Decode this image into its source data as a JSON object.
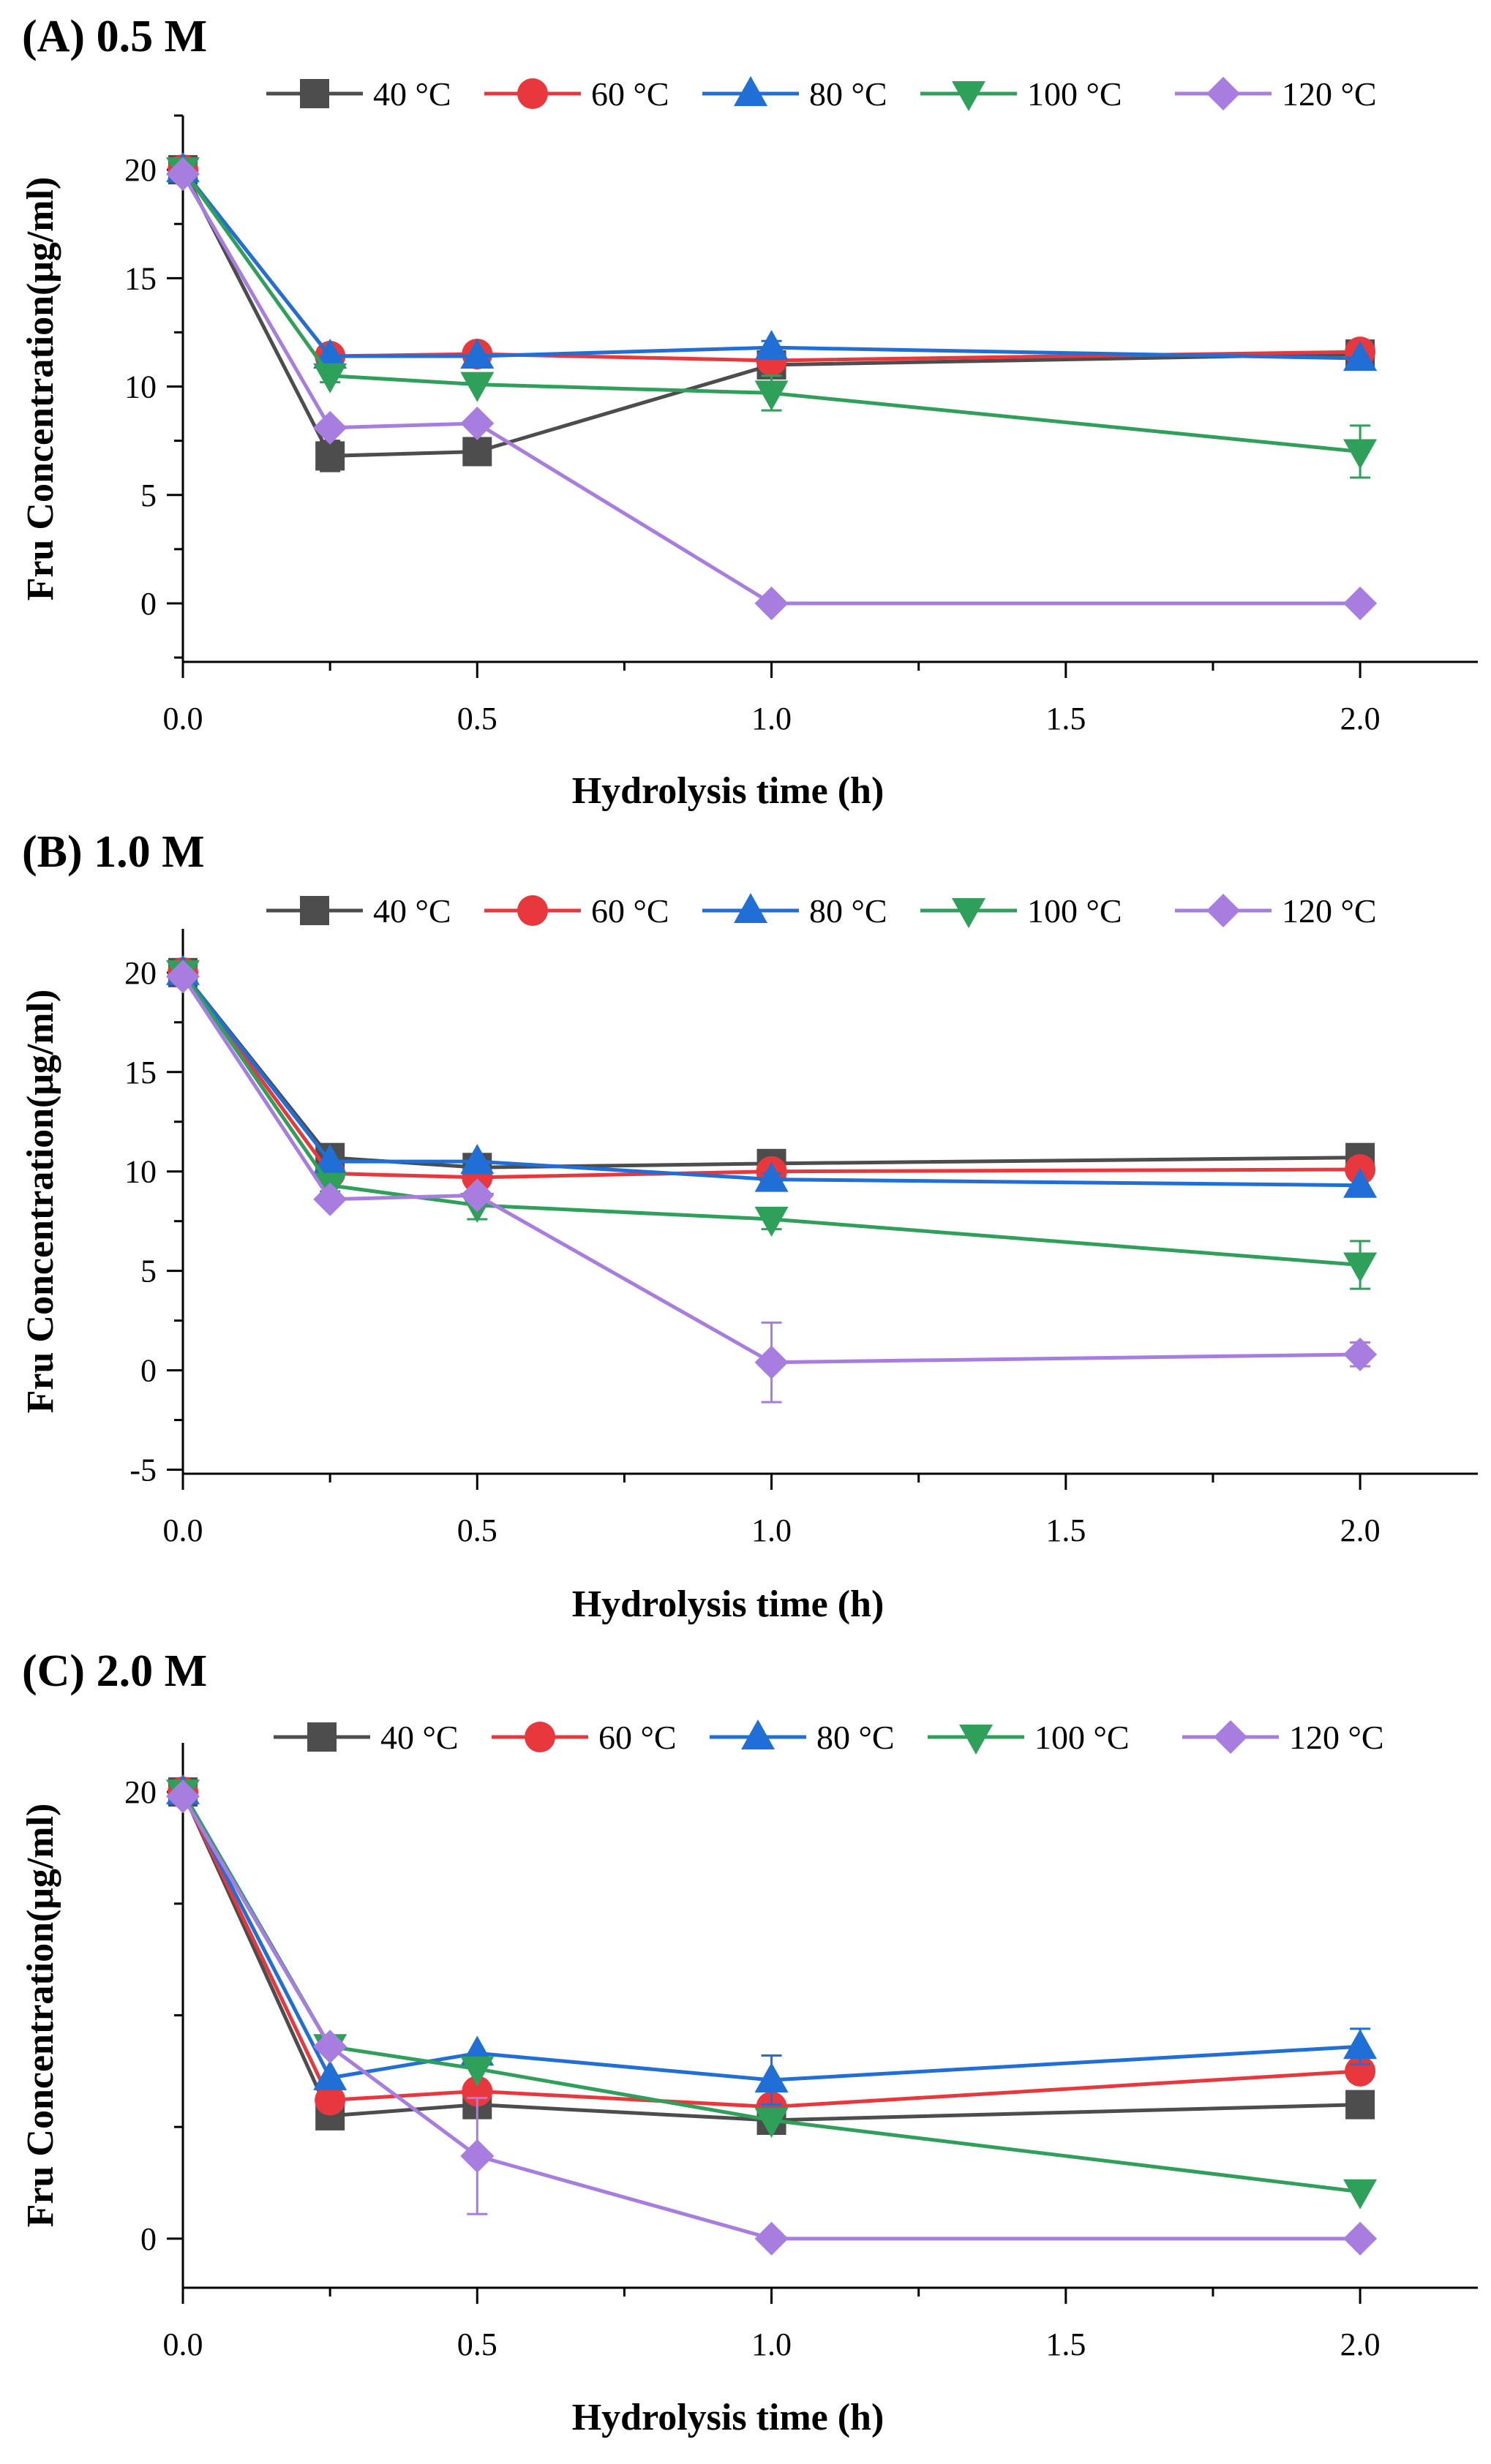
{
  "figure": {
    "xlabel": "Hydrolysis time (h)",
    "ylabel": "Fru Concentration(μg/ml)",
    "x_ticks": [
      "0.0",
      "0.5",
      "1.0",
      "1.5",
      "2.0"
    ],
    "legend": [
      {
        "name": "40 °C",
        "color": "#4d4d4d",
        "marker": "square"
      },
      {
        "name": "60 °C",
        "color": "#e8383d",
        "marker": "circle"
      },
      {
        "name": "80 °C",
        "color": "#1f6fd6",
        "marker": "triangle-up"
      },
      {
        "name": "100 °C",
        "color": "#2ea05a",
        "marker": "triangle-down"
      },
      {
        "name": "120 °C",
        "color": "#a77de0",
        "marker": "diamond"
      }
    ]
  },
  "chart_data": [
    {
      "type": "line",
      "title": "(A) 0.5 M",
      "xlabel": "Hydrolysis time (h)",
      "ylabel": "Fru Concentration(μg/ml)",
      "x": [
        0,
        0.25,
        0.5,
        1.0,
        2.0
      ],
      "xlim": [
        0,
        2.2
      ],
      "ylim": [
        -2.7,
        22.5
      ],
      "y_ticks": [
        0,
        5,
        10,
        15,
        20
      ],
      "y_tick_labels": [
        "0",
        "5",
        "10",
        "15",
        "20"
      ],
      "series": [
        {
          "name": "40 °C",
          "values": [
            20,
            6.8,
            7.0,
            11.0,
            11.5
          ],
          "errors": [
            0.3,
            0.7,
            0.2,
            0.2,
            0.2
          ]
        },
        {
          "name": "60 °C",
          "values": [
            20,
            11.4,
            11.5,
            11.2,
            11.6
          ],
          "errors": [
            0.2,
            0.2,
            0.2,
            0.3,
            0.2
          ]
        },
        {
          "name": "80 °C",
          "values": [
            20,
            11.4,
            11.4,
            11.8,
            11.3
          ],
          "errors": [
            0.2,
            0.2,
            0.2,
            0.3,
            0.2
          ]
        },
        {
          "name": "100 °C",
          "values": [
            20,
            10.5,
            10.1,
            9.7,
            7.0
          ],
          "errors": [
            0.2,
            0.3,
            0.2,
            0.8,
            1.2
          ]
        },
        {
          "name": "120 °C",
          "values": [
            19.8,
            8.1,
            8.3,
            0,
            0
          ],
          "errors": [
            0.2,
            0.2,
            0.2,
            0,
            0
          ]
        }
      ]
    },
    {
      "type": "line",
      "title": "(B) 1.0 M",
      "xlabel": "Hydrolysis time (h)",
      "ylabel": "Fru Concentration(μg/ml)",
      "x": [
        0,
        0.25,
        0.5,
        1.0,
        2.0
      ],
      "xlim": [
        0,
        2.2
      ],
      "ylim": [
        -5.2,
        22.2
      ],
      "y_ticks": [
        -5,
        0,
        5,
        10,
        15,
        20
      ],
      "y_tick_labels": [
        "-5",
        "0",
        "5",
        "10",
        "15",
        "20"
      ],
      "series": [
        {
          "name": "40 °C",
          "values": [
            20,
            10.7,
            10.2,
            10.4,
            10.7
          ],
          "errors": [
            0.2,
            0.2,
            0.2,
            0.2,
            0.2
          ]
        },
        {
          "name": "60 °C",
          "values": [
            20,
            9.9,
            9.7,
            10.0,
            10.1
          ],
          "errors": [
            0.2,
            0.2,
            0.2,
            0.2,
            0.2
          ]
        },
        {
          "name": "80 °C",
          "values": [
            20,
            10.5,
            10.5,
            9.6,
            9.3
          ],
          "errors": [
            0.2,
            0.2,
            0.2,
            0.3,
            0.2
          ]
        },
        {
          "name": "100 °C",
          "values": [
            20,
            9.3,
            8.3,
            7.6,
            5.3
          ],
          "errors": [
            0.2,
            0.3,
            0.7,
            0.5,
            1.2
          ]
        },
        {
          "name": "120 °C",
          "values": [
            19.8,
            8.6,
            8.8,
            0.4,
            0.8
          ],
          "errors": [
            0.2,
            0.2,
            0.3,
            2.0,
            0.6
          ]
        }
      ]
    },
    {
      "type": "line",
      "title": "(C) 2.0 M",
      "xlabel": "Hydrolysis time (h)",
      "ylabel": "Fru Concentration(μg/ml)",
      "x": [
        0,
        0.25,
        0.5,
        1.0,
        2.0
      ],
      "xlim": [
        0,
        2.2
      ],
      "ylim": [
        -2.2,
        22.2
      ],
      "y_ticks": [
        0,
        20
      ],
      "y_tick_labels": [
        "0",
        "20"
      ],
      "series": [
        {
          "name": "40 °C",
          "values": [
            20,
            5.5,
            6.0,
            5.3,
            6.0
          ],
          "errors": [
            0.2,
            0.2,
            0.2,
            0.2,
            0.2
          ]
        },
        {
          "name": "60 °C",
          "values": [
            20,
            6.2,
            6.6,
            5.9,
            7.5
          ],
          "errors": [
            0.2,
            0.2,
            0.2,
            0.2,
            0.2
          ]
        },
        {
          "name": "80 °C",
          "values": [
            20,
            7.2,
            8.3,
            7.1,
            8.6
          ],
          "errors": [
            0.2,
            0.2,
            0.2,
            1.1,
            0.8
          ]
        },
        {
          "name": "100 °C",
          "values": [
            20,
            8.6,
            7.6,
            5.3,
            2.1
          ],
          "errors": [
            0.2,
            0.2,
            0.2,
            0.2,
            0.2
          ]
        },
        {
          "name": "120 °C",
          "values": [
            19.8,
            8.6,
            3.7,
            0,
            0
          ],
          "errors": [
            0.2,
            0.2,
            2.6,
            0,
            0
          ]
        }
      ]
    }
  ]
}
